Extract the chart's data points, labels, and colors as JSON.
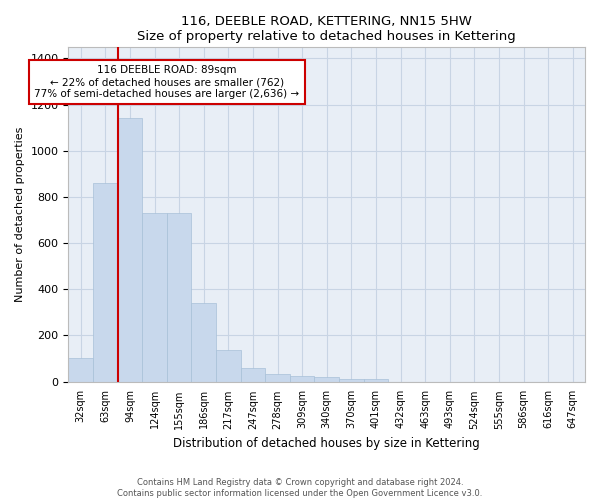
{
  "title": "116, DEEBLE ROAD, KETTERING, NN15 5HW",
  "subtitle": "Size of property relative to detached houses in Kettering",
  "xlabel": "Distribution of detached houses by size in Kettering",
  "ylabel": "Number of detached properties",
  "bar_color": "#c8d8ec",
  "bar_edgecolor": "#a8c0d8",
  "grid_color": "#c8d4e4",
  "bg_color": "#e8eef6",
  "categories": [
    "32sqm",
    "63sqm",
    "94sqm",
    "124sqm",
    "155sqm",
    "186sqm",
    "217sqm",
    "247sqm",
    "278sqm",
    "309sqm",
    "340sqm",
    "370sqm",
    "401sqm",
    "432sqm",
    "463sqm",
    "493sqm",
    "524sqm",
    "555sqm",
    "586sqm",
    "616sqm",
    "647sqm"
  ],
  "values": [
    102,
    860,
    1140,
    730,
    730,
    340,
    135,
    60,
    32,
    22,
    18,
    12,
    10,
    0,
    0,
    0,
    0,
    0,
    0,
    0,
    0
  ],
  "vline_color": "#cc0000",
  "vline_pos": 1.5,
  "ylim": [
    0,
    1450
  ],
  "yticks": [
    0,
    200,
    400,
    600,
    800,
    1000,
    1200,
    1400
  ],
  "annotation_text": "116 DEEBLE ROAD: 89sqm\n← 22% of detached houses are smaller (762)\n77% of semi-detached houses are larger (2,636) →",
  "annotation_box_edgecolor": "#cc0000",
  "footer1": "Contains HM Land Registry data © Crown copyright and database right 2024.",
  "footer2": "Contains public sector information licensed under the Open Government Licence v3.0."
}
